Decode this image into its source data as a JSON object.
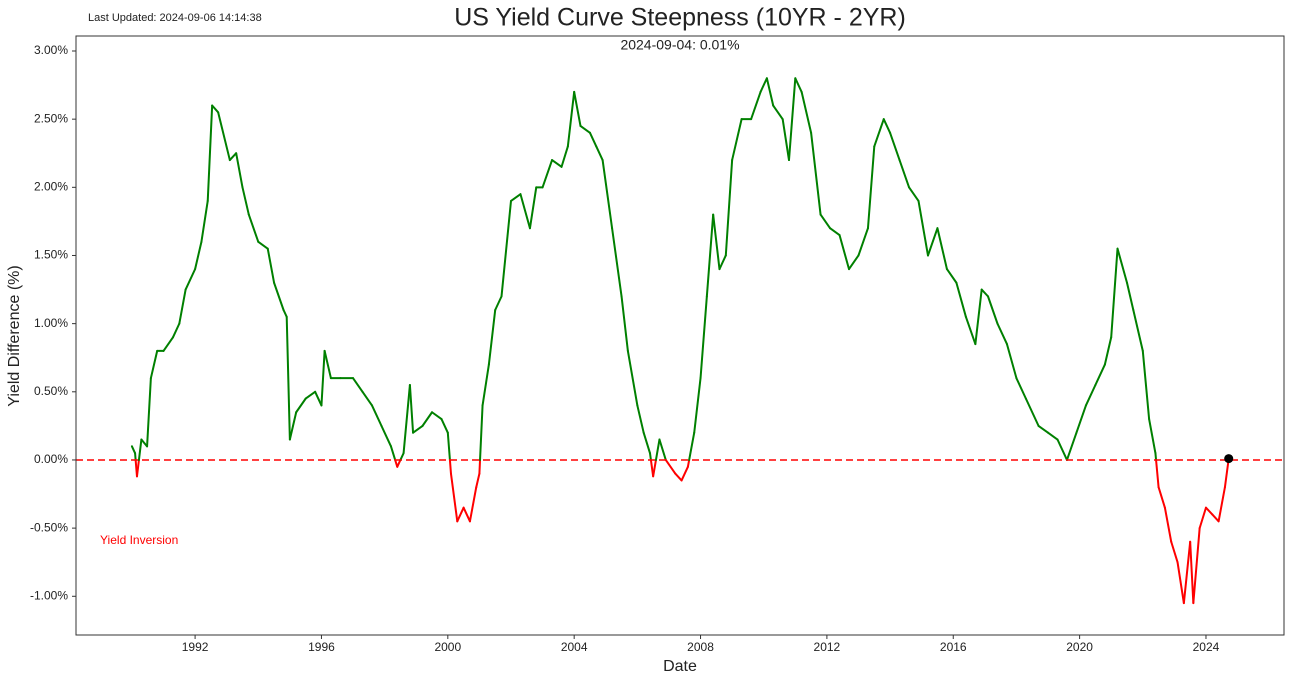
{
  "chart_data": {
    "type": "line",
    "title": "US Yield Curve Steepness (10YR - 2YR)",
    "subtitle": "2024-09-04: 0.01%",
    "last_updated": "Last Updated: 2024-09-06 14:14:38",
    "annotation": "Yield Inversion",
    "xlabel": "Date",
    "ylabel": "Yield Difference (%)",
    "xlim": [
      1988.23,
      2026.47
    ],
    "ylim": [
      -1.284,
      3.11
    ],
    "xticks": [
      1992,
      1996,
      2000,
      2004,
      2008,
      2012,
      2016,
      2020,
      2024
    ],
    "yticks": [
      {
        "value": -1,
        "label": "-1.00%"
      },
      {
        "value": -0.5,
        "label": "-0.50%"
      },
      {
        "value": 0,
        "label": "0.00%"
      },
      {
        "value": 0.5,
        "label": "0.50%"
      },
      {
        "value": 1,
        "label": "1.00%"
      },
      {
        "value": 1.5,
        "label": "1.50%"
      },
      {
        "value": 2,
        "label": "2.00%"
      },
      {
        "value": 2.5,
        "label": "2.50%"
      },
      {
        "value": 3,
        "label": "3.00%"
      }
    ],
    "grid": false,
    "color_positive": "green",
    "color_negative": "red",
    "reference_line": {
      "value": 0,
      "color": "red",
      "style": "dashed"
    },
    "marker_color": "black",
    "x": [
      1990.0,
      1990.1,
      1990.16,
      1990.3,
      1990.48,
      1990.6,
      1990.8,
      1991.0,
      1991.3,
      1991.5,
      1991.7,
      1992.0,
      1992.2,
      1992.4,
      1992.54,
      1992.73,
      1993.1,
      1993.3,
      1993.5,
      1993.7,
      1994.0,
      1994.3,
      1994.5,
      1994.8,
      1994.9,
      1995.0,
      1995.2,
      1995.5,
      1995.8,
      1996.0,
      1996.1,
      1996.3,
      1996.6,
      1997.0,
      1997.3,
      1997.6,
      1997.9,
      1998.2,
      1998.4,
      1998.6,
      1998.8,
      1998.9,
      1999.2,
      1999.5,
      1999.8,
      2000.0,
      2000.1,
      2000.3,
      2000.5,
      2000.7,
      2000.9,
      2001.0,
      2001.1,
      2001.3,
      2001.5,
      2001.7,
      2002.0,
      2002.3,
      2002.6,
      2002.8,
      2003.0,
      2003.3,
      2003.6,
      2003.8,
      2004.0,
      2004.2,
      2004.5,
      2004.7,
      2004.9,
      2005.2,
      2005.5,
      2005.7,
      2006.0,
      2006.2,
      2006.4,
      2006.5,
      2006.7,
      2006.9,
      2007.2,
      2007.4,
      2007.6,
      2007.8,
      2008.0,
      2008.2,
      2008.4,
      2008.6,
      2008.8,
      2009.0,
      2009.3,
      2009.6,
      2009.9,
      2010.1,
      2010.3,
      2010.6,
      2010.8,
      2011.0,
      2011.2,
      2011.5,
      2011.8,
      2012.1,
      2012.4,
      2012.7,
      2013.0,
      2013.3,
      2013.5,
      2013.8,
      2014.0,
      2014.3,
      2014.6,
      2014.9,
      2015.2,
      2015.5,
      2015.8,
      2016.1,
      2016.4,
      2016.7,
      2016.9,
      2017.1,
      2017.4,
      2017.7,
      2018.0,
      2018.3,
      2018.7,
      2019.0,
      2019.3,
      2019.6,
      2019.9,
      2020.2,
      2020.5,
      2020.8,
      2021.0,
      2021.2,
      2021.5,
      2021.7,
      2022.0,
      2022.2,
      2022.4,
      2022.5,
      2022.7,
      2022.9,
      2023.1,
      2023.3,
      2023.5,
      2023.6,
      2023.8,
      2024.0,
      2024.2,
      2024.4,
      2024.6,
      2024.72
    ],
    "values": [
      0.1,
      0.05,
      -0.12,
      0.15,
      0.1,
      0.6,
      0.8,
      0.8,
      0.9,
      1.0,
      1.25,
      1.4,
      1.6,
      1.9,
      2.6,
      2.55,
      2.2,
      2.25,
      2.0,
      1.8,
      1.6,
      1.55,
      1.3,
      1.1,
      1.05,
      0.15,
      0.35,
      0.45,
      0.5,
      0.4,
      0.8,
      0.6,
      0.6,
      0.6,
      0.5,
      0.4,
      0.25,
      0.1,
      -0.05,
      0.05,
      0.55,
      0.2,
      0.25,
      0.35,
      0.3,
      0.2,
      -0.1,
      -0.45,
      -0.35,
      -0.45,
      -0.2,
      -0.1,
      0.4,
      0.7,
      1.1,
      1.2,
      1.9,
      1.95,
      1.7,
      2.0,
      2.0,
      2.2,
      2.15,
      2.3,
      2.7,
      2.45,
      2.4,
      2.3,
      2.2,
      1.7,
      1.2,
      0.8,
      0.4,
      0.2,
      0.05,
      -0.12,
      0.15,
      0.0,
      -0.1,
      -0.15,
      -0.05,
      0.2,
      0.6,
      1.2,
      1.8,
      1.4,
      1.5,
      2.2,
      2.5,
      2.5,
      2.7,
      2.8,
      2.6,
      2.5,
      2.2,
      2.8,
      2.7,
      2.4,
      1.8,
      1.7,
      1.65,
      1.4,
      1.5,
      1.7,
      2.3,
      2.5,
      2.4,
      2.2,
      2.0,
      1.9,
      1.5,
      1.7,
      1.4,
      1.3,
      1.05,
      0.85,
      1.25,
      1.2,
      1.0,
      0.85,
      0.6,
      0.45,
      0.25,
      0.2,
      0.15,
      0.0,
      0.2,
      0.4,
      0.55,
      0.7,
      0.9,
      1.55,
      1.3,
      1.1,
      0.8,
      0.3,
      0.05,
      -0.2,
      -0.35,
      -0.6,
      -0.75,
      -1.05,
      -0.6,
      -1.05,
      -0.5,
      -0.35,
      -0.4,
      -0.45,
      -0.2,
      0.01
    ]
  }
}
